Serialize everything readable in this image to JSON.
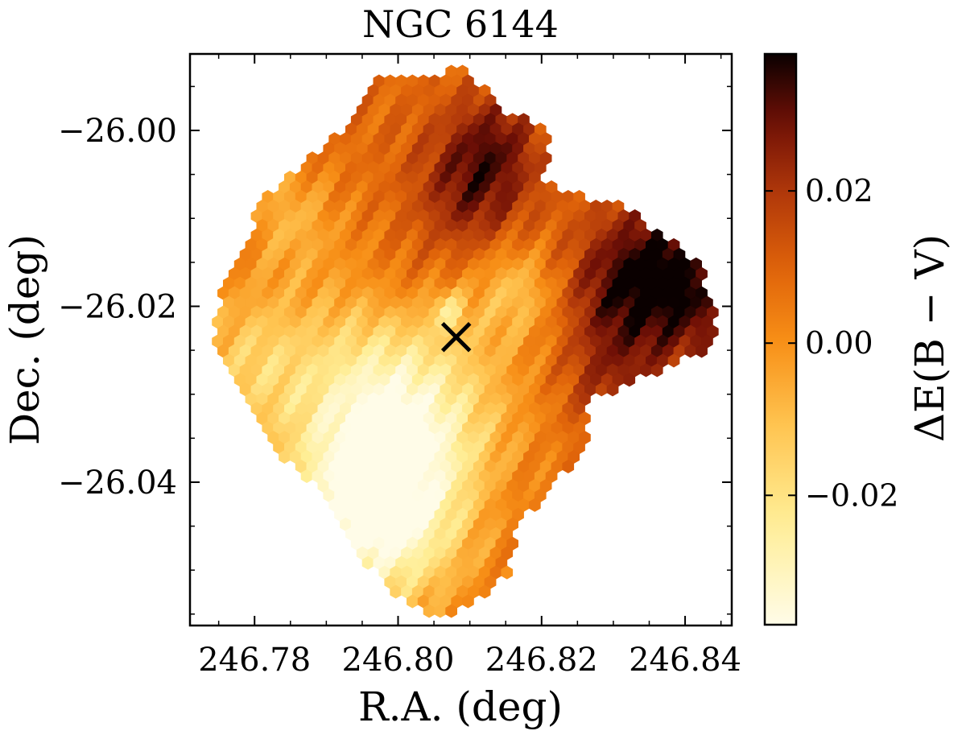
{
  "chart_data": {
    "type": "heatmap",
    "title": "NGC 6144",
    "xlabel": "R.A. (deg)",
    "ylabel": "Dec. (deg)",
    "colorbar_label": "ΔE(B − V)",
    "xlim": [
      246.771,
      246.8465
    ],
    "ylim": [
      -26.0563,
      -25.9913
    ],
    "xticks": [
      246.78,
      246.8,
      246.82,
      246.84
    ],
    "xtick_labels": [
      "246.78",
      "246.80",
      "246.82",
      "246.84"
    ],
    "yticks": [
      -26.0,
      -26.02,
      -26.04
    ],
    "ytick_labels": [
      "−26.00",
      "−26.02",
      "−26.04"
    ],
    "colorbar_range": [
      -0.037,
      0.038
    ],
    "colorbar_ticks": [
      -0.02,
      0.0,
      0.02
    ],
    "colorbar_tick_labels": [
      "−0.02",
      "0.00",
      "0.02"
    ],
    "cluster_center": {
      "ra": 246.8081,
      "dec": -26.0235,
      "marker": "x"
    },
    "hex_cell_size_deg": 0.00155,
    "field_boundary_ra_dec": [
      [
        246.7977,
        -25.9935
      ],
      [
        246.8022,
        -25.9941
      ],
      [
        246.809,
        -25.993
      ],
      [
        246.8155,
        -25.998
      ],
      [
        246.8215,
        -26.0
      ],
      [
        246.82,
        -26.0058
      ],
      [
        246.8322,
        -26.009
      ],
      [
        246.8417,
        -26.015
      ],
      [
        246.8445,
        -26.021
      ],
      [
        246.8445,
        -26.0245
      ],
      [
        246.836,
        -26.0275
      ],
      [
        246.8255,
        -26.031
      ],
      [
        246.827,
        -26.0355
      ],
      [
        246.8165,
        -26.045
      ],
      [
        246.8155,
        -26.0505
      ],
      [
        246.8105,
        -26.0535
      ],
      [
        246.807,
        -26.0555
      ],
      [
        246.802,
        -26.0545
      ],
      [
        246.798,
        -26.052
      ],
      [
        246.7955,
        -26.0488
      ],
      [
        246.7928,
        -26.0458
      ],
      [
        246.788,
        -26.04
      ],
      [
        246.782,
        -26.0358
      ],
      [
        246.777,
        -26.029
      ],
      [
        246.7745,
        -26.024
      ],
      [
        246.775,
        -26.0185
      ],
      [
        246.7785,
        -26.013
      ],
      [
        246.781,
        -26.008
      ],
      [
        246.786,
        -26.0045
      ],
      [
        246.789,
        -26.0025
      ],
      [
        246.7935,
        -25.9985
      ],
      [
        246.795,
        -25.9958
      ]
    ],
    "extinction_features": [
      {
        "ra": 246.7992,
        "dec": -26.034,
        "value": -0.037,
        "radius_deg": 0.0105
      },
      {
        "ra": 246.7965,
        "dec": -26.045,
        "value": -0.02,
        "radius_deg": 0.0075
      },
      {
        "ra": 246.779,
        "dec": -26.026,
        "value": -0.01,
        "radius_deg": 0.006
      },
      {
        "ra": 246.785,
        "dec": -26.01,
        "value": -0.006,
        "radius_deg": 0.0045
      },
      {
        "ra": 246.839,
        "dec": -26.017,
        "value": 0.038,
        "radius_deg": 0.007
      },
      {
        "ra": 246.83,
        "dec": -26.018,
        "value": 0.022,
        "radius_deg": 0.005
      },
      {
        "ra": 246.81,
        "dec": -26.007,
        "value": 0.028,
        "radius_deg": 0.0055
      },
      {
        "ra": 246.814,
        "dec": -26.001,
        "value": 0.022,
        "radius_deg": 0.0045
      },
      {
        "ra": 246.829,
        "dec": -26.0285,
        "value": 0.02,
        "radius_deg": 0.0045
      },
      {
        "ra": 246.801,
        "dec": -26.018,
        "value": 0.015,
        "radius_deg": 0.0045
      },
      {
        "ra": 246.8165,
        "dec": -26.018,
        "value": -0.008,
        "radius_deg": 0.004
      },
      {
        "ra": 246.807,
        "dec": -26.0205,
        "value": -0.01,
        "radius_deg": 0.0016
      },
      {
        "ra": 246.815,
        "dec": -26.042,
        "value": 0.012,
        "radius_deg": 0.004
      }
    ],
    "base_value": 0.008
  }
}
